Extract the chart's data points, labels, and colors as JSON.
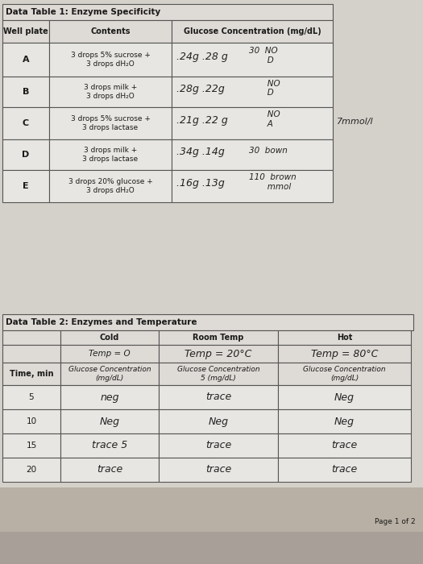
{
  "bg_top": "#c8c4bc",
  "bg_paper": "#dedad4",
  "bg_bottom": "#b0a898",
  "table_bg": "#e8e5e0",
  "table_header_bg": "#dedad4",
  "line_color": "#555555",
  "font_color": "#1a1a1a",
  "hw_color": "#222222",
  "table1_title": "Data Table 1: Enzyme Specificity",
  "table1_col0_hdr": "Well plate",
  "table1_col1_hdr": "Contents",
  "table1_col2_hdr": "Glucose Concentration (mg/dL)",
  "t1_rows": [
    [
      "A",
      "3 drops 5% sucrose +\n3 drops dH₂O",
      ".24g .28 g",
      "30  NO\n       D",
      ""
    ],
    [
      "B",
      "3 drops milk +\n3 drops dH₂O",
      ".28g .22g",
      "       NO\n       D",
      ""
    ],
    [
      "C",
      "3 drops 5% sucrose +\n3 drops lactase",
      ".21g .22 g",
      "       NO\n       A",
      "7mmol/l"
    ],
    [
      "D",
      "3 drops milk +\n3 drops lactase",
      ".34g .14g",
      "30  bown",
      ""
    ],
    [
      "E",
      "3 drops 20% glucose +\n3 drops dH₂O",
      ".16g .13g",
      "110  brown\n       mmol",
      ""
    ]
  ],
  "table2_title": "Data Table 2: Enzymes and Temperature",
  "t2_c0": "Cold",
  "t2_c1": "Room Temp",
  "t2_c2": "Hot",
  "t2_temp0": "Temp = O",
  "t2_temp1": "Temp = 20°C",
  "t2_temp2": "Temp = 80°C",
  "t2_gh0": "Glucose Concentration\n(mg/dL)",
  "t2_gh1": "Glucose Concentration\n5 (mg/dL)",
  "t2_gh2": "Glucose Concentration\n(mg/dL)",
  "t2_time_label": "Time, min",
  "t2_rows": [
    [
      "5",
      "neg",
      "trace",
      "Neg"
    ],
    [
      "10",
      "Neg",
      "Neg",
      "Neg"
    ],
    [
      "15",
      "trace 5",
      "trace",
      "trace"
    ],
    [
      "20",
      "trace",
      "trace",
      "trace"
    ]
  ],
  "page_label": "Page 1 of 2"
}
